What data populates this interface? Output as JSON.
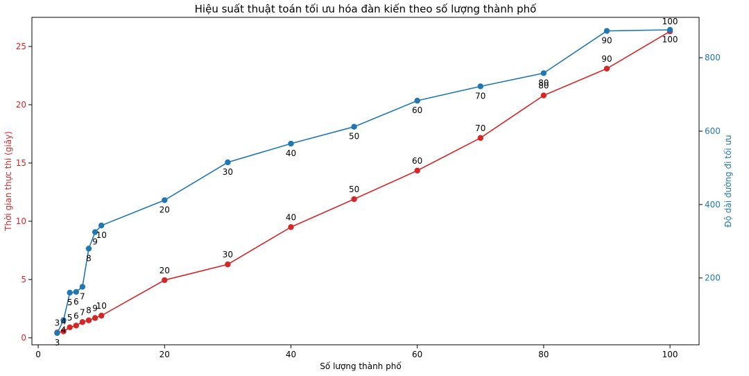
{
  "chart_data": {
    "type": "line",
    "title": "Hiệu suất thuật toán tối ưu hóa đàn kiến theo số lượng thành phố",
    "xlabel": "Số lượng thành phố",
    "ylabel_left": "Thời gian thực thi (giây)",
    "ylabel_right": "Độ dài đường đi tối ưu",
    "x": [
      3,
      4,
      5,
      6,
      7,
      8,
      9,
      10,
      20,
      30,
      40,
      50,
      60,
      70,
      80,
      90,
      100
    ],
    "x_ticks": [
      "0",
      "20",
      "40",
      "60",
      "80",
      "100"
    ],
    "x_tick_values": [
      0,
      20,
      40,
      60,
      80,
      100
    ],
    "left_ticks": [
      "0",
      "5",
      "10",
      "15",
      "20",
      "25"
    ],
    "left_tick_values": [
      0,
      5,
      10,
      15,
      20,
      25
    ],
    "right_ticks": [
      "200",
      "400",
      "600",
      "800"
    ],
    "right_tick_values": [
      200,
      400,
      600,
      800
    ],
    "xlim": [
      -1,
      104.6
    ],
    "ylim_left": [
      -0.6,
      27.5
    ],
    "ylim_right": [
      18,
      910
    ],
    "series": [
      {
        "name": "",
        "axis": "left",
        "color": "#d62728",
        "values": [
          0.45,
          0.55,
          0.9,
          1.05,
          1.35,
          1.5,
          1.7,
          1.9,
          4.95,
          6.3,
          9.5,
          11.9,
          14.35,
          17.15,
          20.8,
          23.1,
          26.3
        ],
        "labels": [
          "3",
          "4",
          "5",
          "6",
          "7",
          "8",
          "9",
          "10",
          "20",
          "30",
          "40",
          "50",
          "60",
          "70",
          "80",
          "90",
          "100"
        ]
      },
      {
        "name": "",
        "axis": "right",
        "color": "#1f77b4",
        "values": [
          50,
          85,
          160,
          162,
          176,
          280,
          325,
          343,
          412,
          515,
          566,
          612,
          683,
          722,
          758,
          873,
          876
        ],
        "labels": [
          "3",
          "4",
          "5",
          "6",
          "7",
          "8",
          "9",
          "10",
          "20",
          "30",
          "40",
          "50",
          "60",
          "70",
          "80",
          "90",
          "100"
        ]
      }
    ],
    "grid": false,
    "legend": "none"
  }
}
